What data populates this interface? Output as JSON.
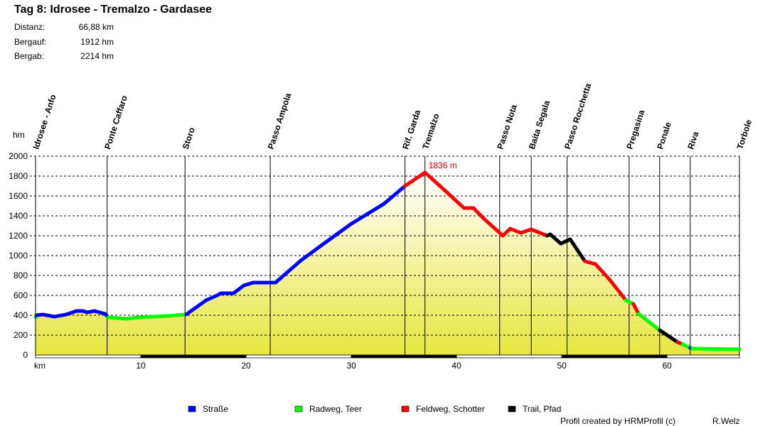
{
  "header": {
    "title": "Tag 8: Idrosee - Tremalzo - Gardasee",
    "stats": [
      {
        "label": "Distanz:",
        "value": "66,88 km"
      },
      {
        "label": "Bergauf:",
        "value": "1912 hm"
      },
      {
        "label": "Bergab:",
        "value": "2214 hm"
      }
    ]
  },
  "footer": {
    "credit": "Profil created by HRMProfil (c)",
    "author": "R.Welz"
  },
  "chart_data": {
    "type": "area",
    "xlabel": "km",
    "ylabel": "hm",
    "xlim": [
      0,
      66.88
    ],
    "ylim": [
      0,
      2000
    ],
    "xticks": [
      10,
      20,
      30,
      40,
      50,
      60
    ],
    "yticks": [
      0,
      200,
      400,
      600,
      800,
      1000,
      1200,
      1400,
      1600,
      1800,
      2000
    ],
    "grid": "horizontal-dashed",
    "peak_annotation": {
      "km": 37.0,
      "elevation": 1836,
      "label": "1836 m"
    },
    "surface_colors": {
      "strasse": "#0000ff",
      "radweg": "#00ff00",
      "feldweg": "#ff0000",
      "trail": "#000000"
    },
    "legend": [
      {
        "key": "strasse",
        "label": "Straße"
      },
      {
        "key": "radweg",
        "label": "Radweg, Teer"
      },
      {
        "key": "feldweg",
        "label": "Feldweg, Schotter"
      },
      {
        "key": "trail",
        "label": "Trail, Pfad"
      }
    ],
    "waypoints": [
      {
        "name": "Idrosee - Anfo",
        "km": 0
      },
      {
        "name": "Ponte Caffaro",
        "km": 6.8
      },
      {
        "name": "Storo",
        "km": 14.2
      },
      {
        "name": "Passo Ampola",
        "km": 22.3
      },
      {
        "name": "Rif. Garda",
        "km": 35.1
      },
      {
        "name": "Tremalzo",
        "km": 37.0
      },
      {
        "name": "Passo Nota",
        "km": 44.1
      },
      {
        "name": "Baita Segala",
        "km": 47.1
      },
      {
        "name": "Passo Rocchetta",
        "km": 50.5
      },
      {
        "name": "Pregasina",
        "km": 56.4
      },
      {
        "name": "Ponale",
        "km": 59.3
      },
      {
        "name": "Riva",
        "km": 62.2
      },
      {
        "name": "Torbole",
        "km": 66.88
      }
    ],
    "profile": [
      [
        0,
        379,
        "radweg"
      ],
      [
        0.1,
        400,
        "strasse"
      ],
      [
        0.7,
        407,
        "strasse"
      ],
      [
        1.8,
        386,
        "strasse"
      ],
      [
        2.9,
        407,
        "strasse"
      ],
      [
        3.9,
        443,
        "strasse"
      ],
      [
        4.5,
        443,
        "strasse"
      ],
      [
        4.9,
        429,
        "strasse"
      ],
      [
        5.6,
        443,
        "strasse"
      ],
      [
        6.6,
        414,
        "strasse"
      ],
      [
        6.9,
        379,
        "radweg"
      ],
      [
        8.6,
        364,
        "radweg"
      ],
      [
        9.9,
        379,
        "radweg"
      ],
      [
        12.6,
        393,
        "radweg"
      ],
      [
        14.3,
        407,
        "strasse"
      ],
      [
        16.2,
        550,
        "strasse"
      ],
      [
        17.4,
        607,
        "strasse"
      ],
      [
        17.6,
        621,
        "strasse"
      ],
      [
        18.8,
        621,
        "strasse"
      ],
      [
        19.8,
        700,
        "strasse"
      ],
      [
        20.7,
        729,
        "strasse"
      ],
      [
        22.8,
        729,
        "strasse"
      ],
      [
        25.2,
        950,
        "strasse"
      ],
      [
        27.5,
        1129,
        "strasse"
      ],
      [
        30.0,
        1320,
        "strasse"
      ],
      [
        33.1,
        1521,
        "strasse"
      ],
      [
        35.1,
        1700,
        "feldweg"
      ],
      [
        37.0,
        1836,
        "feldweg"
      ],
      [
        38.5,
        1693,
        "feldweg"
      ],
      [
        40.7,
        1479,
        "feldweg"
      ],
      [
        41.6,
        1479,
        "feldweg"
      ],
      [
        42.6,
        1371,
        "feldweg"
      ],
      [
        44.4,
        1200,
        "feldweg"
      ],
      [
        45.1,
        1271,
        "feldweg"
      ],
      [
        46.1,
        1229,
        "feldweg"
      ],
      [
        47.1,
        1264,
        "feldweg"
      ],
      [
        48.6,
        1200,
        "trail"
      ],
      [
        48.9,
        1214,
        "trail"
      ],
      [
        49.9,
        1121,
        "trail"
      ],
      [
        50.8,
        1164,
        "trail"
      ],
      [
        52.2,
        943,
        "feldweg"
      ],
      [
        53.2,
        914,
        "feldweg"
      ],
      [
        54.5,
        764,
        "feldweg"
      ],
      [
        56.1,
        550,
        "radweg"
      ],
      [
        56.8,
        514,
        "feldweg"
      ],
      [
        57.3,
        414,
        "radweg"
      ],
      [
        59.3,
        250,
        "trail"
      ],
      [
        61.0,
        129,
        "feldweg"
      ],
      [
        61.5,
        107,
        "radweg"
      ],
      [
        62.2,
        71,
        "strasse"
      ],
      [
        62.4,
        64,
        "radweg"
      ],
      [
        66.88,
        57,
        "radweg"
      ]
    ]
  }
}
